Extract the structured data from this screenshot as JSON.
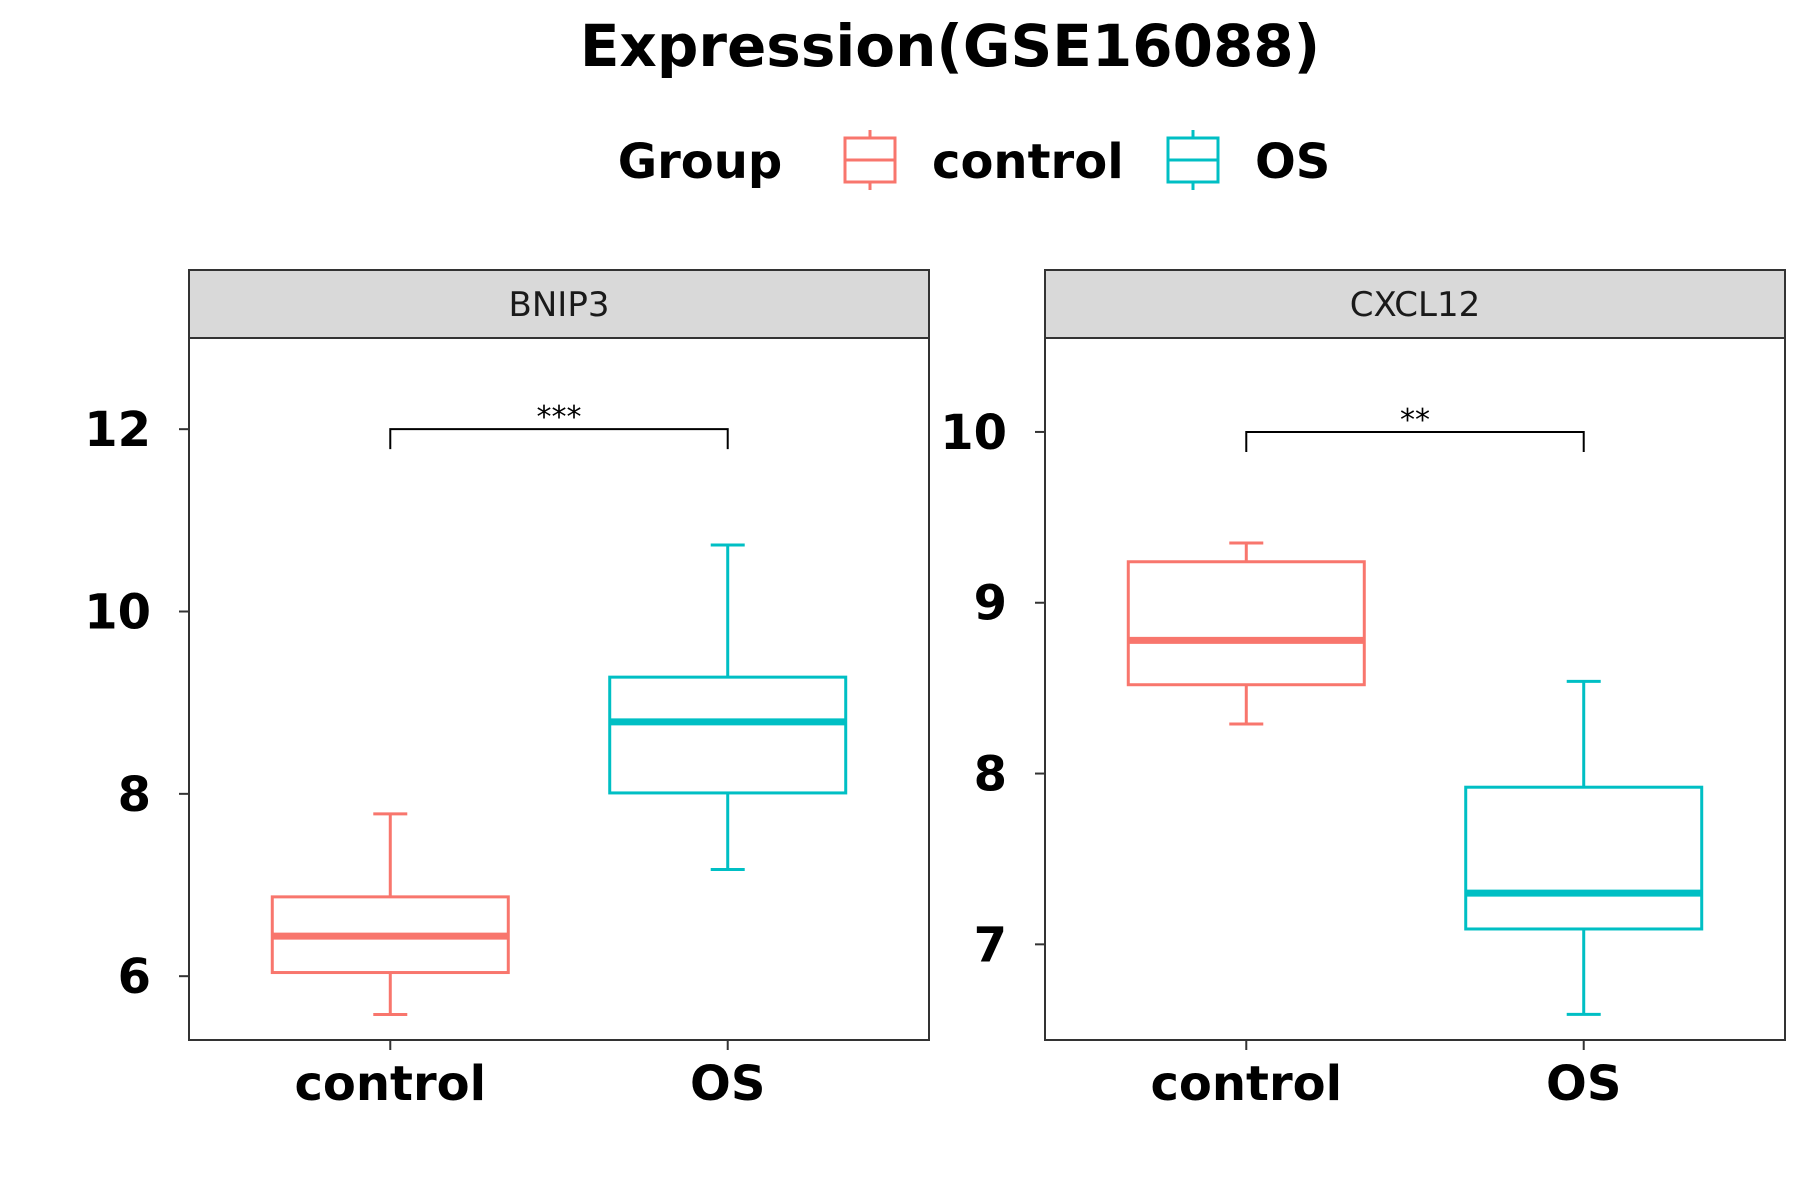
{
  "chart_data": {
    "type": "box",
    "title": "Expression(GSE16088)",
    "legend": {
      "title": "Group",
      "position": "top",
      "entries": [
        {
          "label": "control",
          "color": "#F8766D"
        },
        {
          "label": "OS",
          "color": "#00BFC4"
        }
      ]
    },
    "categories": [
      "control",
      "OS"
    ],
    "grid": false,
    "panels": [
      {
        "strip": "BNIP3",
        "ylim": [
          5.3,
          13.0
        ],
        "yticks": [
          6,
          8,
          10,
          12
        ],
        "boxes": [
          {
            "group": "control",
            "color": "#F8766D",
            "min": 5.58,
            "q1": 6.04,
            "median": 6.44,
            "q3": 6.87,
            "max": 7.78
          },
          {
            "group": "OS",
            "color": "#00BFC4",
            "min": 7.17,
            "q1": 8.01,
            "median": 8.79,
            "q3": 9.28,
            "max": 10.73
          }
        ],
        "significance": {
          "label": "***",
          "y": 12.0
        }
      },
      {
        "strip": "CXCL12",
        "ylim": [
          6.44,
          10.55
        ],
        "yticks": [
          7,
          8,
          9,
          10
        ],
        "boxes": [
          {
            "group": "control",
            "color": "#F8766D",
            "min": 8.29,
            "q1": 8.52,
            "median": 8.78,
            "q3": 9.24,
            "max": 9.35
          },
          {
            "group": "OS",
            "color": "#00BFC4",
            "min": 6.59,
            "q1": 7.09,
            "median": 7.3,
            "q3": 7.92,
            "max": 8.54
          }
        ],
        "significance": {
          "label": "**",
          "y": 10.0
        }
      }
    ]
  }
}
